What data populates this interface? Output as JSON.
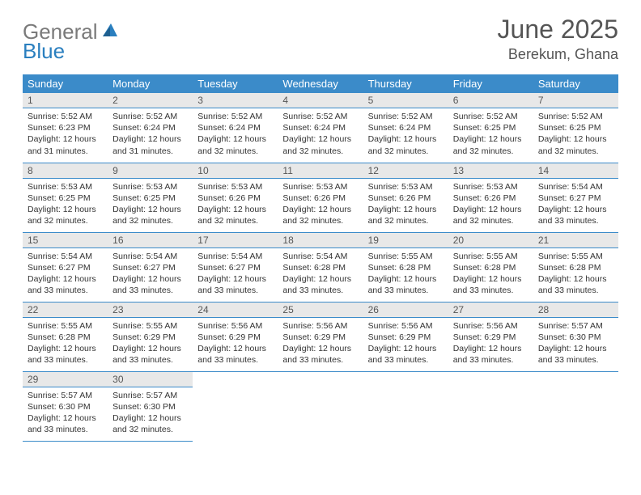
{
  "logo": {
    "text_gray": "General",
    "text_blue": "Blue"
  },
  "header": {
    "month_title": "June 2025",
    "location": "Berekum, Ghana"
  },
  "colors": {
    "header_bg": "#3b8bc9",
    "header_text": "#ffffff",
    "daynum_bg": "#e8e8e8",
    "border": "#3b8bc9",
    "logo_gray": "#7a7a7a",
    "logo_blue": "#2a7fbf"
  },
  "weekdays": [
    "Sunday",
    "Monday",
    "Tuesday",
    "Wednesday",
    "Thursday",
    "Friday",
    "Saturday"
  ],
  "days": [
    {
      "n": "1",
      "sr": "Sunrise: 5:52 AM",
      "ss": "Sunset: 6:23 PM",
      "dl1": "Daylight: 12 hours",
      "dl2": "and 31 minutes."
    },
    {
      "n": "2",
      "sr": "Sunrise: 5:52 AM",
      "ss": "Sunset: 6:24 PM",
      "dl1": "Daylight: 12 hours",
      "dl2": "and 31 minutes."
    },
    {
      "n": "3",
      "sr": "Sunrise: 5:52 AM",
      "ss": "Sunset: 6:24 PM",
      "dl1": "Daylight: 12 hours",
      "dl2": "and 32 minutes."
    },
    {
      "n": "4",
      "sr": "Sunrise: 5:52 AM",
      "ss": "Sunset: 6:24 PM",
      "dl1": "Daylight: 12 hours",
      "dl2": "and 32 minutes."
    },
    {
      "n": "5",
      "sr": "Sunrise: 5:52 AM",
      "ss": "Sunset: 6:24 PM",
      "dl1": "Daylight: 12 hours",
      "dl2": "and 32 minutes."
    },
    {
      "n": "6",
      "sr": "Sunrise: 5:52 AM",
      "ss": "Sunset: 6:25 PM",
      "dl1": "Daylight: 12 hours",
      "dl2": "and 32 minutes."
    },
    {
      "n": "7",
      "sr": "Sunrise: 5:52 AM",
      "ss": "Sunset: 6:25 PM",
      "dl1": "Daylight: 12 hours",
      "dl2": "and 32 minutes."
    },
    {
      "n": "8",
      "sr": "Sunrise: 5:53 AM",
      "ss": "Sunset: 6:25 PM",
      "dl1": "Daylight: 12 hours",
      "dl2": "and 32 minutes."
    },
    {
      "n": "9",
      "sr": "Sunrise: 5:53 AM",
      "ss": "Sunset: 6:25 PM",
      "dl1": "Daylight: 12 hours",
      "dl2": "and 32 minutes."
    },
    {
      "n": "10",
      "sr": "Sunrise: 5:53 AM",
      "ss": "Sunset: 6:26 PM",
      "dl1": "Daylight: 12 hours",
      "dl2": "and 32 minutes."
    },
    {
      "n": "11",
      "sr": "Sunrise: 5:53 AM",
      "ss": "Sunset: 6:26 PM",
      "dl1": "Daylight: 12 hours",
      "dl2": "and 32 minutes."
    },
    {
      "n": "12",
      "sr": "Sunrise: 5:53 AM",
      "ss": "Sunset: 6:26 PM",
      "dl1": "Daylight: 12 hours",
      "dl2": "and 32 minutes."
    },
    {
      "n": "13",
      "sr": "Sunrise: 5:53 AM",
      "ss": "Sunset: 6:26 PM",
      "dl1": "Daylight: 12 hours",
      "dl2": "and 32 minutes."
    },
    {
      "n": "14",
      "sr": "Sunrise: 5:54 AM",
      "ss": "Sunset: 6:27 PM",
      "dl1": "Daylight: 12 hours",
      "dl2": "and 33 minutes."
    },
    {
      "n": "15",
      "sr": "Sunrise: 5:54 AM",
      "ss": "Sunset: 6:27 PM",
      "dl1": "Daylight: 12 hours",
      "dl2": "and 33 minutes."
    },
    {
      "n": "16",
      "sr": "Sunrise: 5:54 AM",
      "ss": "Sunset: 6:27 PM",
      "dl1": "Daylight: 12 hours",
      "dl2": "and 33 minutes."
    },
    {
      "n": "17",
      "sr": "Sunrise: 5:54 AM",
      "ss": "Sunset: 6:27 PM",
      "dl1": "Daylight: 12 hours",
      "dl2": "and 33 minutes."
    },
    {
      "n": "18",
      "sr": "Sunrise: 5:54 AM",
      "ss": "Sunset: 6:28 PM",
      "dl1": "Daylight: 12 hours",
      "dl2": "and 33 minutes."
    },
    {
      "n": "19",
      "sr": "Sunrise: 5:55 AM",
      "ss": "Sunset: 6:28 PM",
      "dl1": "Daylight: 12 hours",
      "dl2": "and 33 minutes."
    },
    {
      "n": "20",
      "sr": "Sunrise: 5:55 AM",
      "ss": "Sunset: 6:28 PM",
      "dl1": "Daylight: 12 hours",
      "dl2": "and 33 minutes."
    },
    {
      "n": "21",
      "sr": "Sunrise: 5:55 AM",
      "ss": "Sunset: 6:28 PM",
      "dl1": "Daylight: 12 hours",
      "dl2": "and 33 minutes."
    },
    {
      "n": "22",
      "sr": "Sunrise: 5:55 AM",
      "ss": "Sunset: 6:28 PM",
      "dl1": "Daylight: 12 hours",
      "dl2": "and 33 minutes."
    },
    {
      "n": "23",
      "sr": "Sunrise: 5:55 AM",
      "ss": "Sunset: 6:29 PM",
      "dl1": "Daylight: 12 hours",
      "dl2": "and 33 minutes."
    },
    {
      "n": "24",
      "sr": "Sunrise: 5:56 AM",
      "ss": "Sunset: 6:29 PM",
      "dl1": "Daylight: 12 hours",
      "dl2": "and 33 minutes."
    },
    {
      "n": "25",
      "sr": "Sunrise: 5:56 AM",
      "ss": "Sunset: 6:29 PM",
      "dl1": "Daylight: 12 hours",
      "dl2": "and 33 minutes."
    },
    {
      "n": "26",
      "sr": "Sunrise: 5:56 AM",
      "ss": "Sunset: 6:29 PM",
      "dl1": "Daylight: 12 hours",
      "dl2": "and 33 minutes."
    },
    {
      "n": "27",
      "sr": "Sunrise: 5:56 AM",
      "ss": "Sunset: 6:29 PM",
      "dl1": "Daylight: 12 hours",
      "dl2": "and 33 minutes."
    },
    {
      "n": "28",
      "sr": "Sunrise: 5:57 AM",
      "ss": "Sunset: 6:30 PM",
      "dl1": "Daylight: 12 hours",
      "dl2": "and 33 minutes."
    },
    {
      "n": "29",
      "sr": "Sunrise: 5:57 AM",
      "ss": "Sunset: 6:30 PM",
      "dl1": "Daylight: 12 hours",
      "dl2": "and 33 minutes."
    },
    {
      "n": "30",
      "sr": "Sunrise: 5:57 AM",
      "ss": "Sunset: 6:30 PM",
      "dl1": "Daylight: 12 hours",
      "dl2": "and 32 minutes."
    }
  ]
}
